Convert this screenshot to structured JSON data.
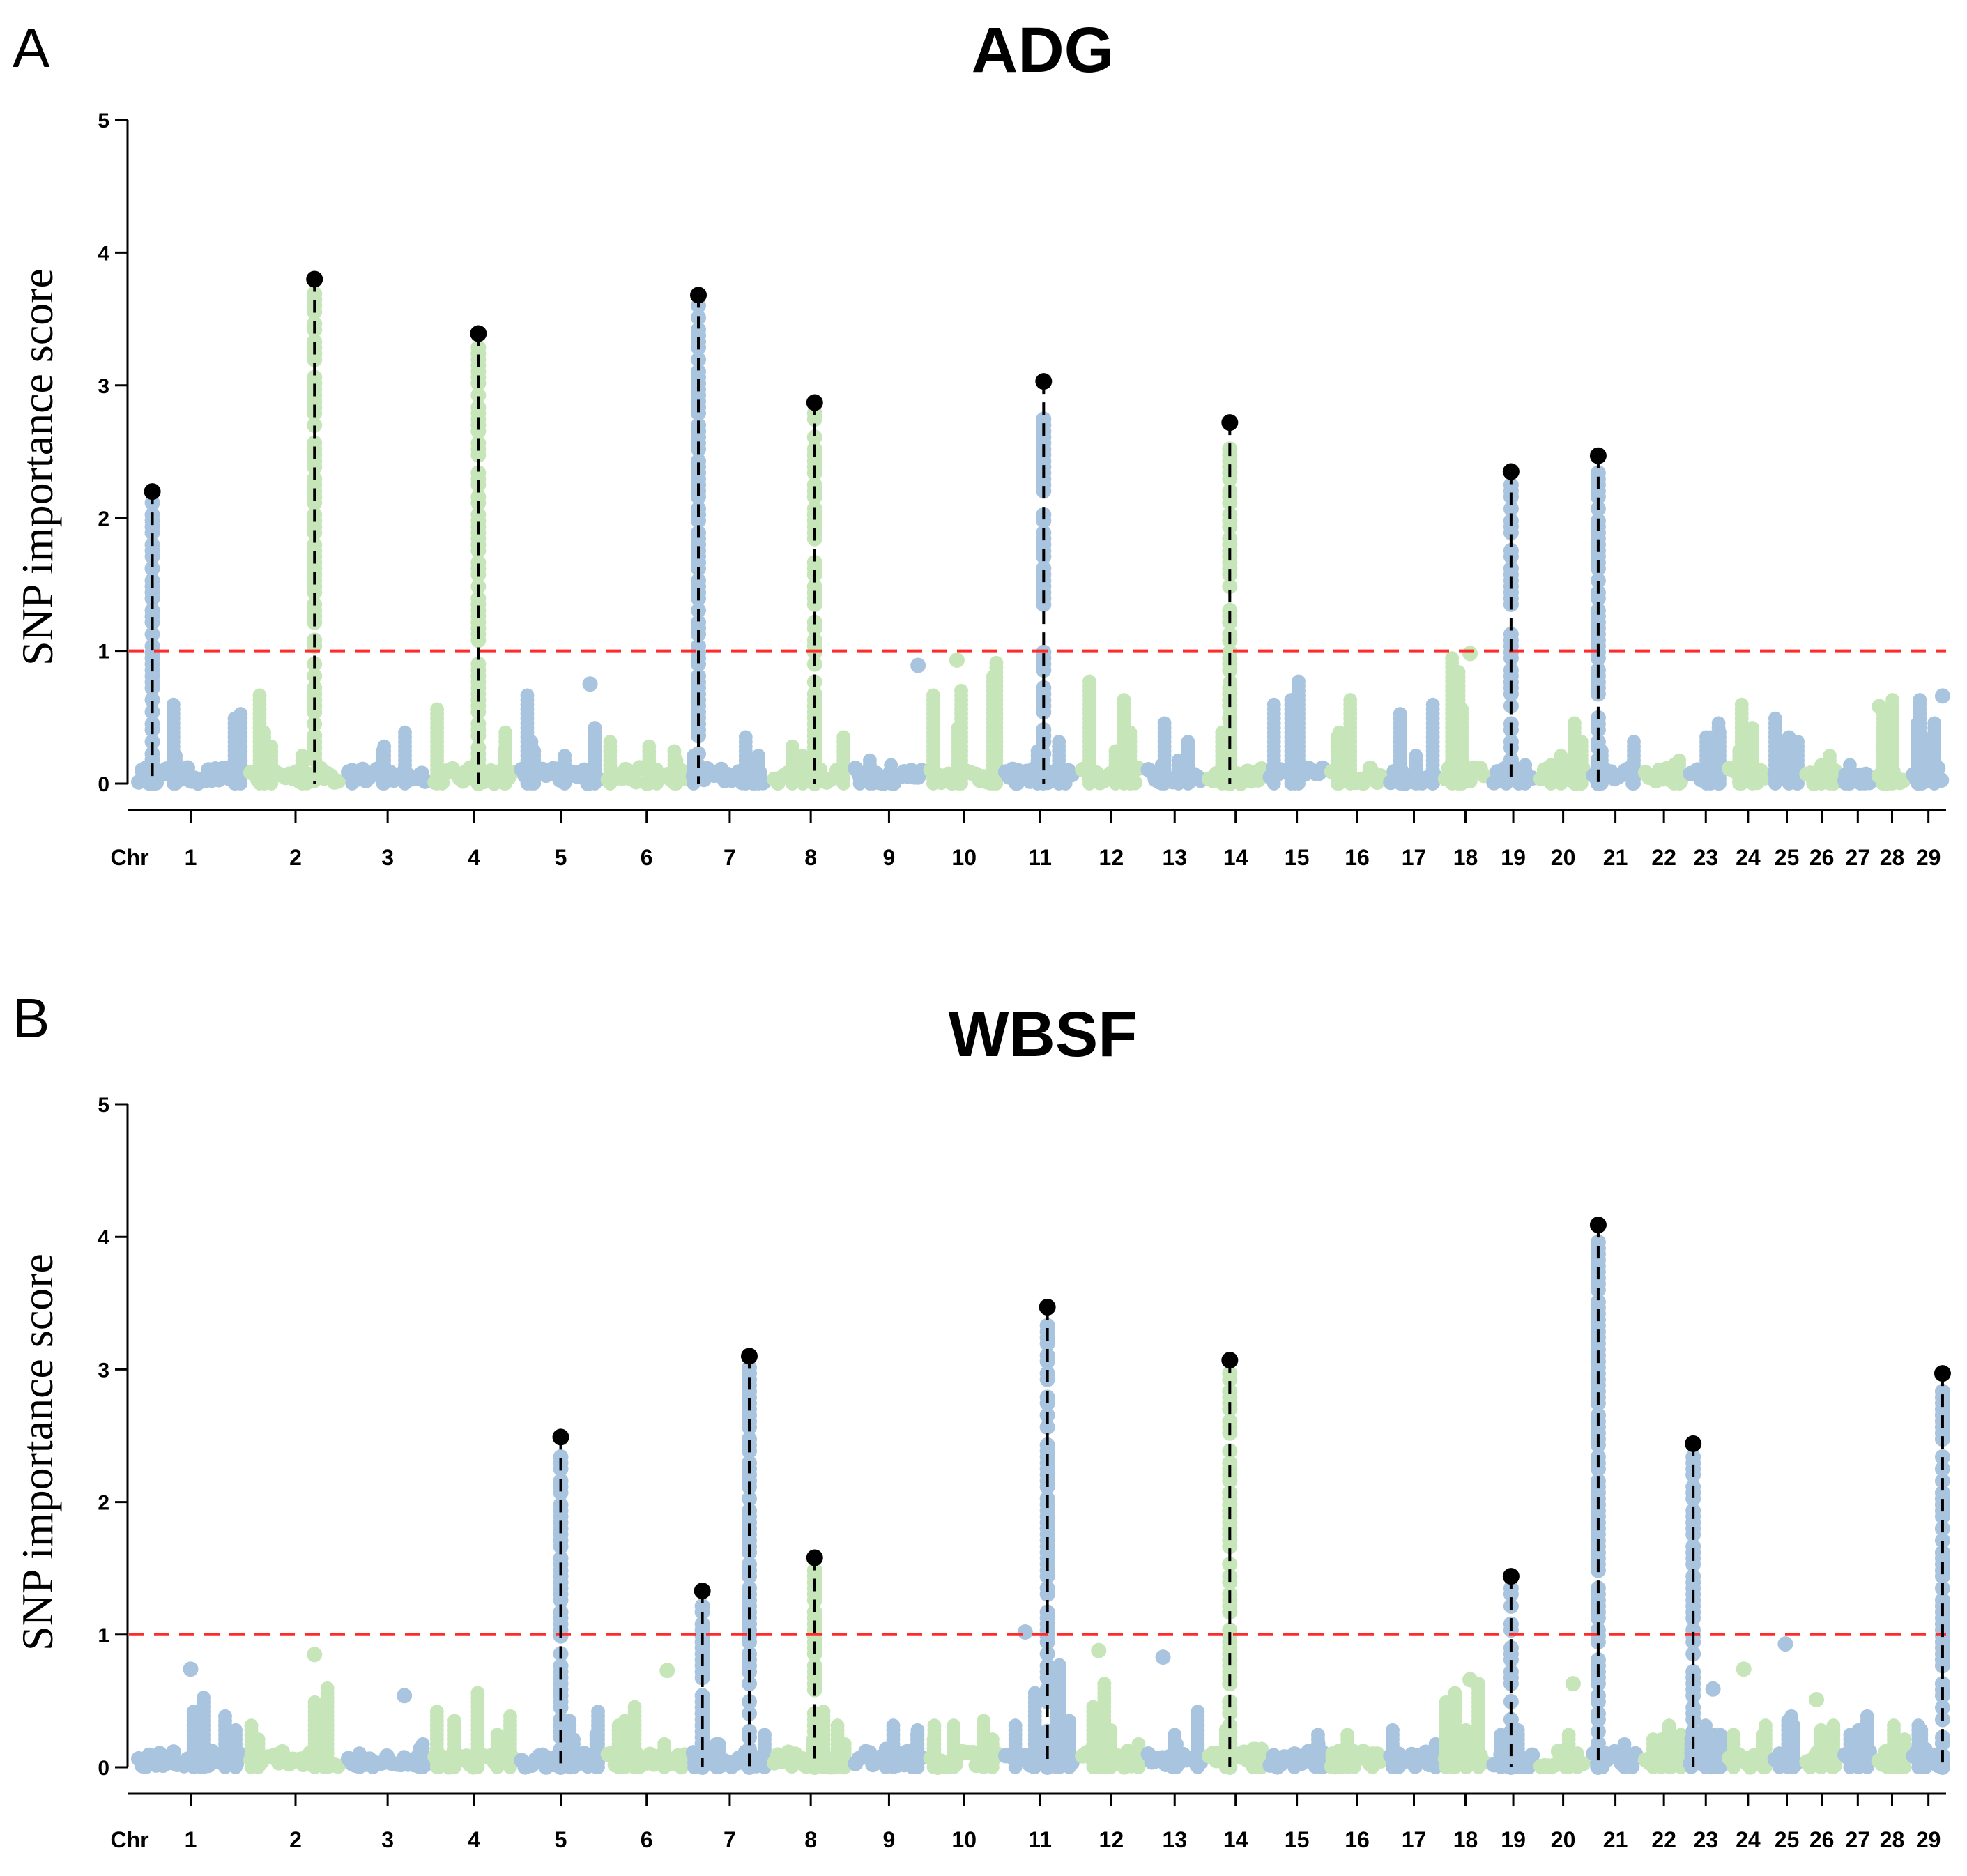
{
  "chart_data": [
    {
      "panel": "A",
      "type": "scatter",
      "title": "ADG",
      "ylabel": "SNP importance score",
      "xlabel_prefix": "Chr",
      "ylim": [
        0,
        5
      ],
      "yticks": [
        0,
        1,
        2,
        3,
        4,
        5
      ],
      "threshold": 1,
      "colors": {
        "blue": "#a9c4de",
        "green": "#c6e5b8",
        "threshold": "#ff2a2a",
        "peak": "#000000"
      },
      "chromosomes": [
        "1",
        "2",
        "3",
        "4",
        "5",
        "6",
        "7",
        "8",
        "9",
        "10",
        "11",
        "12",
        "13",
        "14",
        "15",
        "16",
        "17",
        "18",
        "19",
        "20",
        "21",
        "22",
        "23",
        "24",
        "25",
        "26",
        "27",
        "28",
        "29"
      ],
      "peaks": [
        {
          "chr": "1",
          "pos": 0.15,
          "value": 2.2
        },
        {
          "chr": "2",
          "pos": 0.7,
          "value": 3.8
        },
        {
          "chr": "4",
          "pos": 0.55,
          "value": 3.39
        },
        {
          "chr": "7",
          "pos": 0.1,
          "value": 3.68
        },
        {
          "chr": "8",
          "pos": 0.55,
          "value": 2.87
        },
        {
          "chr": "11",
          "pos": 0.55,
          "value": 3.03
        },
        {
          "chr": "14",
          "pos": 0.4,
          "value": 2.72
        },
        {
          "chr": "19",
          "pos": 0.45,
          "value": 2.35
        },
        {
          "chr": "21",
          "pos": 0.15,
          "value": 2.47
        }
      ],
      "notable_points": [
        {
          "chr": "5",
          "pos": 0.85,
          "value": 0.75
        },
        {
          "chr": "9",
          "pos": 0.9,
          "value": 0.89
        },
        {
          "chr": "10",
          "pos": 0.4,
          "value": 0.93
        },
        {
          "chr": "18",
          "pos": 0.6,
          "value": 0.98
        },
        {
          "chr": "28",
          "pos": 0.1,
          "value": 0.58
        },
        {
          "chr": "29",
          "pos": 0.9,
          "value": 0.66
        }
      ],
      "chr_max": [
        0.63,
        0.69,
        0.41,
        0.58,
        0.68,
        0.35,
        0.38,
        0.37,
        0.2,
        0.93,
        0.35,
        0.78,
        0.47,
        0.8,
        0.78,
        0.64,
        0.6,
        0.98,
        0.15,
        0.47,
        0.32,
        0.2,
        0.48,
        0.61,
        0.52,
        0.23,
        0.16,
        0.64,
        0.66
      ]
    },
    {
      "panel": "B",
      "type": "scatter",
      "title": "WBSF",
      "ylabel": "SNP importance score",
      "xlabel_prefix": "Chr",
      "ylim": [
        0,
        5
      ],
      "yticks": [
        0,
        1,
        2,
        3,
        4,
        5
      ],
      "threshold": 1,
      "colors": {
        "blue": "#a9c4de",
        "green": "#c6e5b8",
        "threshold": "#ff2a2a",
        "peak": "#000000"
      },
      "chromosomes": [
        "1",
        "2",
        "3",
        "4",
        "5",
        "6",
        "7",
        "8",
        "9",
        "10",
        "11",
        "12",
        "13",
        "14",
        "15",
        "16",
        "17",
        "18",
        "19",
        "20",
        "21",
        "22",
        "23",
        "24",
        "25",
        "26",
        "27",
        "28",
        "29"
      ],
      "peaks": [
        {
          "chr": "5",
          "pos": 0.5,
          "value": 2.49
        },
        {
          "chr": "7",
          "pos": 0.15,
          "value": 1.33
        },
        {
          "chr": "7",
          "pos": 0.75,
          "value": 3.1
        },
        {
          "chr": "8",
          "pos": 0.55,
          "value": 1.58
        },
        {
          "chr": "11",
          "pos": 0.6,
          "value": 3.47
        },
        {
          "chr": "14",
          "pos": 0.4,
          "value": 3.07
        },
        {
          "chr": "19",
          "pos": 0.45,
          "value": 1.44
        },
        {
          "chr": "21",
          "pos": 0.15,
          "value": 4.09
        },
        {
          "chr": "23",
          "pos": 0.15,
          "value": 2.44
        },
        {
          "chr": "29",
          "pos": 0.9,
          "value": 2.97
        }
      ],
      "notable_points": [
        {
          "chr": "1",
          "pos": 0.5,
          "value": 0.74
        },
        {
          "chr": "2",
          "pos": 0.7,
          "value": 0.85
        },
        {
          "chr": "3",
          "pos": 0.7,
          "value": 0.54
        },
        {
          "chr": "6",
          "pos": 0.75,
          "value": 0.73
        },
        {
          "chr": "11",
          "pos": 0.3,
          "value": 1.02
        },
        {
          "chr": "12",
          "pos": 0.3,
          "value": 0.88
        },
        {
          "chr": "13",
          "pos": 0.3,
          "value": 0.83
        },
        {
          "chr": "18",
          "pos": 0.6,
          "value": 0.66
        },
        {
          "chr": "20",
          "pos": 0.7,
          "value": 0.63
        },
        {
          "chr": "23",
          "pos": 0.7,
          "value": 0.59
        },
        {
          "chr": "24",
          "pos": 0.4,
          "value": 0.74
        },
        {
          "chr": "25",
          "pos": 0.45,
          "value": 0.93
        },
        {
          "chr": "26",
          "pos": 0.35,
          "value": 0.51
        }
      ],
      "chr_max": [
        0.55,
        0.62,
        0.2,
        0.58,
        0.43,
        0.46,
        0.25,
        0.43,
        0.33,
        0.38,
        0.8,
        0.65,
        0.45,
        0.3,
        0.25,
        0.27,
        0.28,
        0.65,
        0.3,
        0.25,
        0.2,
        0.34,
        0.35,
        0.35,
        0.42,
        0.35,
        0.4,
        0.33,
        0.35
      ]
    }
  ]
}
